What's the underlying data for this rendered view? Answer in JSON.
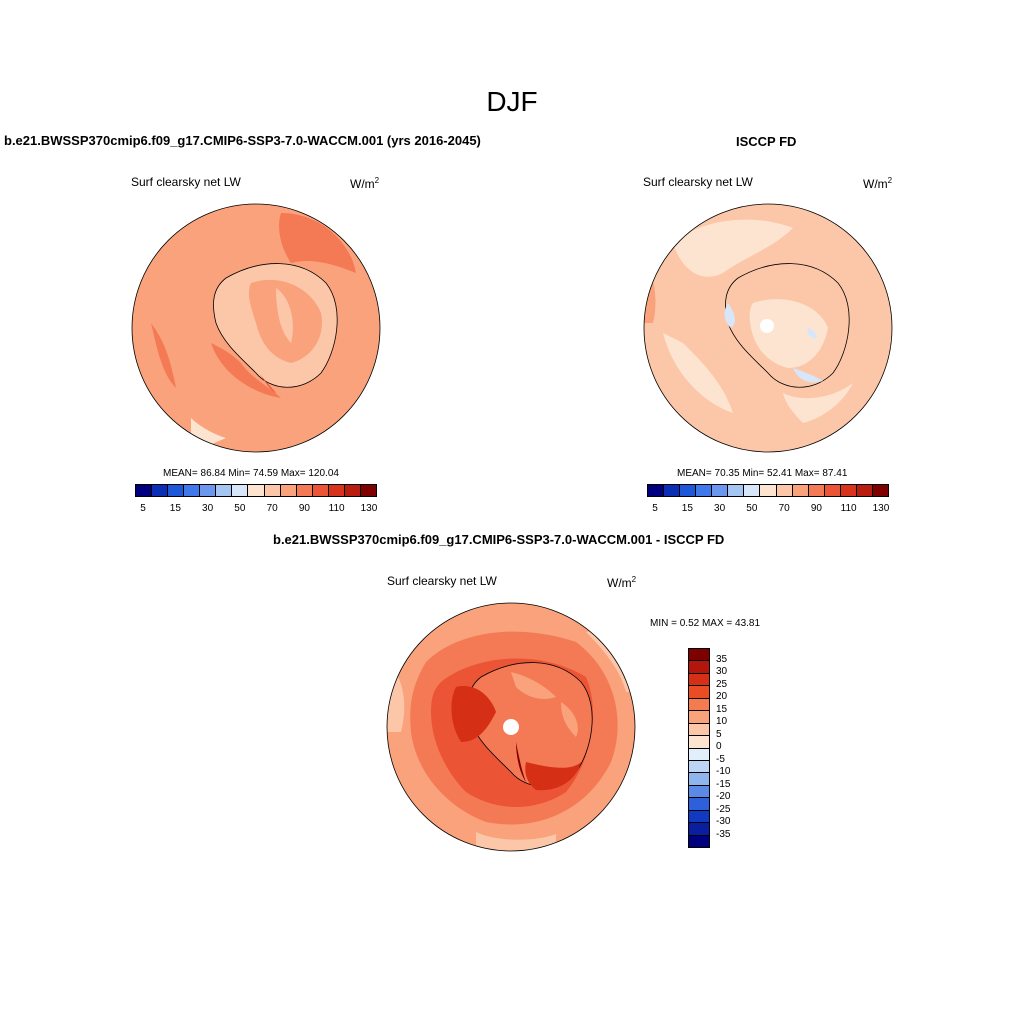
{
  "figure": {
    "title": "DJF"
  },
  "panels": {
    "model": {
      "title": "b.e21.BWSSP370cmip6.f09_g17.CMIP6-SSP3-7.0-WACCM.001 (yrs 2016-2045)",
      "variable": "Surf clearsky net LW",
      "units_base": "W/m",
      "units_exp": "2",
      "stats": "MEAN=  86.84  Min=  74.59  Max= 120.04",
      "colorbar_ticks": [
        "5",
        "15",
        "30",
        "50",
        "70",
        "90",
        "110",
        "130"
      ]
    },
    "obs": {
      "title": "ISCCP FD",
      "variable": "Surf clearsky net LW",
      "units_base": "W/m",
      "units_exp": "2",
      "stats": "MEAN=  70.35  Min=  52.41  Max=  87.41",
      "colorbar_ticks": [
        "5",
        "15",
        "30",
        "50",
        "70",
        "90",
        "110",
        "130"
      ]
    },
    "diff": {
      "title": "b.e21.BWSSP370cmip6.f09_g17.CMIP6-SSP3-7.0-WACCM.001 - ISCCP FD",
      "variable": "Surf clearsky net LW",
      "units_base": "W/m",
      "units_exp": "2",
      "stats": "MIN =   0.52 MAX =  43.81",
      "colorbar_ticks": [
        "35",
        "30",
        "25",
        "20",
        "15",
        "10",
        "5",
        "0",
        "-5",
        "-10",
        "-15",
        "-20",
        "-25",
        "-30",
        "-35"
      ]
    }
  },
  "colors": {
    "abs_scale": [
      "#00007f",
      "#0a2fb4",
      "#1f57d9",
      "#3f78ea",
      "#6b98ee",
      "#a6c6f2",
      "#d7e6f8",
      "#fde4d1",
      "#fcc7a8",
      "#f9a27c",
      "#f47a55",
      "#ec5436",
      "#d8341d",
      "#b81d10",
      "#7f0000"
    ],
    "diff_scale": [
      "#7f0000",
      "#b4160c",
      "#d52f15",
      "#ea4d24",
      "#f47b4f",
      "#f9a27c",
      "#fcc7a8",
      "#fde4d1",
      "#e3eefb",
      "#bcd5f5",
      "#8fb5ee",
      "#5a8ae6",
      "#2f60dc",
      "#1139c2",
      "#0a1fa0",
      "#00007f"
    ]
  }
}
